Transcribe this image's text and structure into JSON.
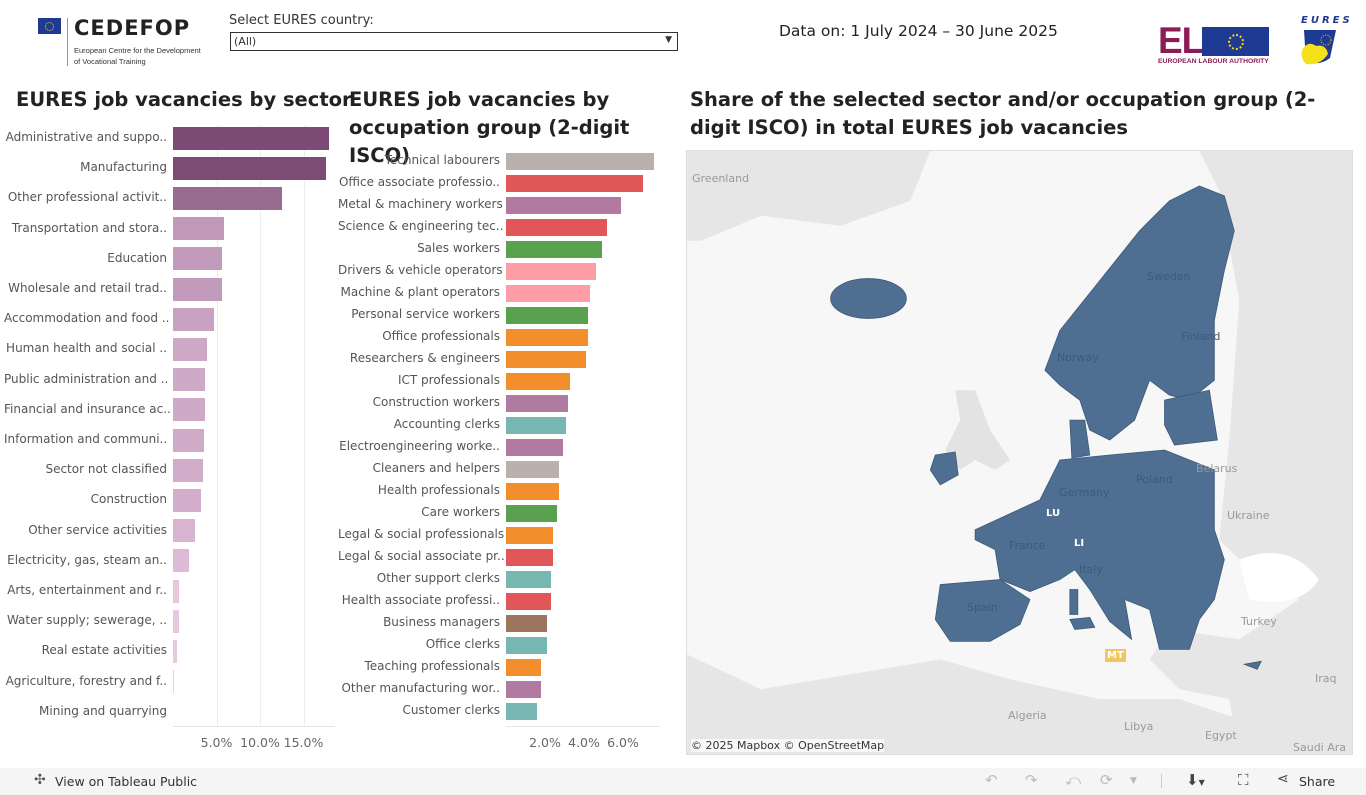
{
  "header": {
    "cedefop_logo_text": "CEDEFOP",
    "cedefop_subtitle_line1": "European Centre for the Development",
    "cedefop_subtitle_line2": "of Vocational Training",
    "country_filter_label": "Select EURES country:",
    "country_filter_value": "(All)",
    "date_range": "Data on: 1 July 2024 – 30 June 2025",
    "ela_logo_text": "ELA",
    "ela_subtitle": "EUROPEAN LABOUR AUTHORITY",
    "eures_logo_text": "EURES"
  },
  "chart_data": [
    {
      "type": "bar",
      "orientation": "horizontal",
      "title": "EURES job vacancies by sector",
      "xlabel": "",
      "ylabel": "",
      "x_ticks": [
        "5.0%",
        "10.0%",
        "15.0%"
      ],
      "xlim": [
        0,
        18.5
      ],
      "grid": true,
      "color_scale": [
        "#f0d0e8",
        "#7a4a74"
      ],
      "categories": [
        "Administrative and suppo..",
        "Manufacturing",
        "Other professional activit..",
        "Transportation and stora..",
        "Education",
        "Wholesale and retail trad..",
        "Accommodation and food ..",
        "Human health and social ..",
        "Public administration and ..",
        "Financial and insurance ac..",
        "Information and communi..",
        "Sector not classified",
        "Construction",
        "Other service activities",
        "Electricity, gas, steam an..",
        "Arts, entertainment and r..",
        "Water supply; sewerage, ..",
        "Real estate activities",
        "Agriculture, forestry and f..",
        "Mining and quarrying"
      ],
      "values": [
        17.9,
        17.6,
        12.5,
        5.9,
        5.6,
        5.6,
        4.7,
        3.9,
        3.7,
        3.7,
        3.6,
        3.4,
        3.2,
        2.5,
        1.8,
        0.7,
        0.7,
        0.5,
        0.1,
        0.0
      ]
    },
    {
      "type": "bar",
      "orientation": "horizontal",
      "title": "EURES job vacancies by occupation group (2-digit ISCO)",
      "xlabel": "",
      "ylabel": "",
      "x_ticks": [
        "2.0%",
        "4.0%",
        "6.0%"
      ],
      "xlim": [
        0,
        7.9
      ],
      "grid": false,
      "categories": [
        "Technical labourers",
        "Office associate professio..",
        "Metal & machinery workers",
        "Science & engineering tec..",
        "Sales workers",
        "Drivers & vehicle operators",
        "Machine & plant operators",
        "Personal service workers",
        "Office professionals",
        "Researchers & engineers",
        "ICT professionals",
        "Construction workers",
        "Accounting clerks",
        "Electroengineering worke..",
        "Cleaners and helpers",
        "Health professionals",
        "Care workers",
        "Legal & social professionals",
        "Legal & social associate pr..",
        "Other support clerks",
        "Health associate professi..",
        "Business managers",
        "Office clerks",
        "Teaching professionals",
        "Other manufacturing wor..",
        "Customer clerks"
      ],
      "values": [
        7.6,
        7.0,
        5.9,
        5.2,
        4.9,
        4.6,
        4.3,
        4.2,
        4.2,
        4.1,
        3.3,
        3.2,
        3.1,
        2.9,
        2.7,
        2.7,
        2.6,
        2.4,
        2.4,
        2.3,
        2.3,
        2.1,
        2.1,
        1.8,
        1.8,
        1.6
      ],
      "colors": [
        "#bab0ac",
        "#e15759",
        "#b07aa1",
        "#e15759",
        "#59a14f",
        "#ff9da7",
        "#ff9da7",
        "#59a14f",
        "#f28e2b",
        "#f28e2b",
        "#f28e2b",
        "#b07aa1",
        "#76b7b2",
        "#b07aa1",
        "#bab0ac",
        "#f28e2b",
        "#59a14f",
        "#f28e2b",
        "#e15759",
        "#76b7b2",
        "#e15759",
        "#9c755f",
        "#76b7b2",
        "#f28e2b",
        "#b07aa1",
        "#76b7b2"
      ]
    }
  ],
  "map": {
    "title": "Share of the selected sector and/or occupation group (2-digit ISCO) in total EURES job vacancies",
    "fill_color": "#4e6e92",
    "badges": [
      {
        "label": "LU",
        "color": "#4e6e92"
      },
      {
        "label": "LI",
        "color": "#4e6e92"
      },
      {
        "label": "MT",
        "color": "#f0c75e"
      }
    ],
    "labels": [
      "Greenland",
      "Sweden",
      "Finland",
      "Norway",
      "Belarus",
      "Poland",
      "Germany",
      "Ukraine",
      "France",
      "Italy",
      "Spain",
      "Turkey",
      "Algeria",
      "Libya",
      "Egypt",
      "Iraq",
      "Saudi Ara"
    ],
    "attribution": "© 2025 Mapbox  © OpenStreetMap"
  },
  "footer": {
    "view_on_tableau": "View on Tableau Public",
    "share": "Share",
    "icons": [
      "undo-icon",
      "redo-icon",
      "revert-icon",
      "refresh-icon",
      "download-icon",
      "fullscreen-icon",
      "share-icon"
    ]
  }
}
